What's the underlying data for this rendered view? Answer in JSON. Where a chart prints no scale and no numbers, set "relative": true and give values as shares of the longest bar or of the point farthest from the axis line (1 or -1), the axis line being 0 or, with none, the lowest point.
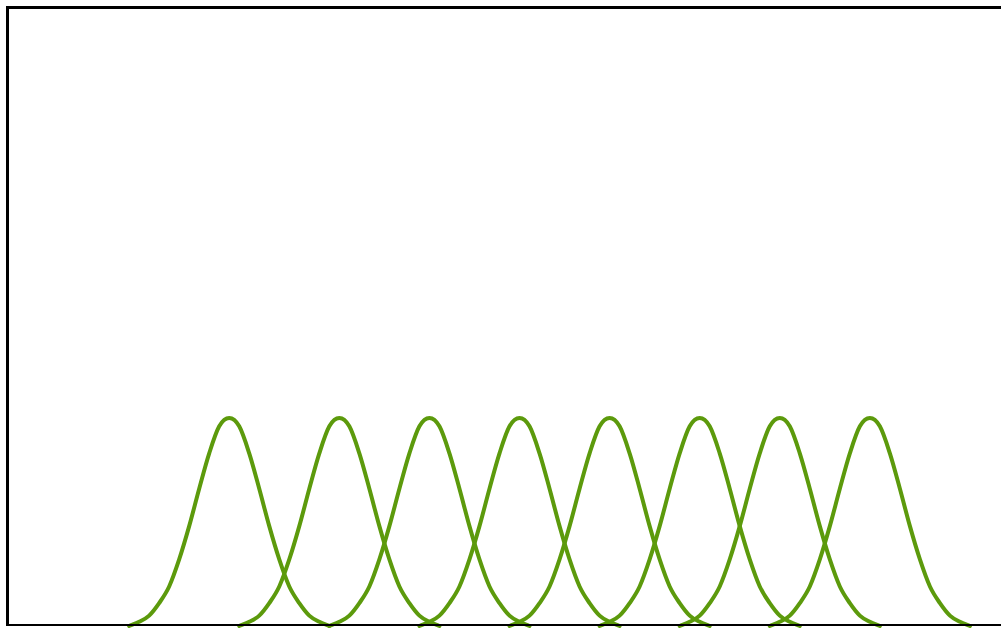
{
  "chart_data": {
    "type": "line",
    "relative": true,
    "marker": "none",
    "categories": [
      null,
      null,
      null,
      null,
      null,
      null,
      null,
      null,
      null,
      null,
      null,
      null,
      null,
      null,
      null,
      null,
      null,
      null,
      null,
      null,
      null,
      null,
      null,
      null,
      null,
      null,
      null,
      null,
      null,
      null,
      null,
      null,
      null,
      null,
      null,
      null,
      null,
      null,
      null,
      null,
      null,
      null,
      null,
      null,
      null,
      null,
      null,
      null,
      null,
      null,
      null,
      null,
      null,
      null,
      null,
      null,
      null,
      null,
      null,
      null,
      null,
      null,
      null,
      null,
      null,
      null,
      null,
      null,
      null,
      null,
      null,
      null,
      null,
      null,
      null,
      null,
      null,
      null,
      null,
      null,
      null,
      null,
      null,
      null,
      null,
      null,
      null,
      null,
      null,
      null,
      null,
      null,
      null,
      null,
      null,
      null,
      null,
      null,
      null,
      null
    ],
    "series": [
      {
        "color": "#5c9a0c",
        "values": [
          null,
          null,
          null,
          null,
          null,
          null,
          null,
          null,
          null,
          null,
          null,
          null,
          0,
          0.02,
          0.05,
          0.11,
          0.19,
          0.32,
          0.48,
          0.66,
          0.83,
          0.96,
          1,
          0.96,
          0.83,
          0.66,
          0.48,
          0.32,
          0.19,
          0.11,
          0.05,
          0.02,
          0,
          null,
          null,
          null,
          null,
          null,
          null,
          null,
          null,
          null,
          null,
          null,
          null,
          null,
          null,
          null,
          null,
          null,
          null,
          null,
          null,
          null,
          null,
          null,
          null,
          null,
          null,
          null,
          null,
          null,
          null,
          null,
          null,
          null,
          null,
          null,
          null,
          null,
          null,
          null,
          null,
          null,
          null,
          null,
          null,
          null,
          null,
          null,
          null,
          null,
          null,
          null,
          null,
          null,
          null,
          null,
          null,
          null,
          null,
          null,
          null,
          null,
          null,
          null,
          null,
          null,
          null,
          null
        ]
      },
      {
        "color": "#5c9a0c",
        "values": [
          null,
          null,
          null,
          null,
          null,
          null,
          null,
          null,
          null,
          null,
          null,
          null,
          null,
          null,
          null,
          null,
          null,
          null,
          null,
          null,
          null,
          null,
          null,
          0,
          0.02,
          0.05,
          0.11,
          0.19,
          0.32,
          0.48,
          0.66,
          0.83,
          0.96,
          1,
          0.96,
          0.83,
          0.66,
          0.48,
          0.32,
          0.19,
          0.11,
          0.05,
          0.02,
          0,
          null,
          null,
          null,
          null,
          null,
          null,
          null,
          null,
          null,
          null,
          null,
          null,
          null,
          null,
          null,
          null,
          null,
          null,
          null,
          null,
          null,
          null,
          null,
          null,
          null,
          null,
          null,
          null,
          null,
          null,
          null,
          null,
          null,
          null,
          null,
          null,
          null,
          null,
          null,
          null,
          null,
          null,
          null,
          null,
          null,
          null,
          null,
          null,
          null,
          null,
          null,
          null,
          null,
          null,
          null,
          null
        ]
      },
      {
        "color": "#5c9a0c",
        "values": [
          null,
          null,
          null,
          null,
          null,
          null,
          null,
          null,
          null,
          null,
          null,
          null,
          null,
          null,
          null,
          null,
          null,
          null,
          null,
          null,
          null,
          null,
          null,
          null,
          null,
          null,
          null,
          null,
          null,
          null,
          null,
          null,
          0,
          0.02,
          0.05,
          0.11,
          0.19,
          0.32,
          0.48,
          0.66,
          0.83,
          0.96,
          1,
          0.96,
          0.83,
          0.66,
          0.48,
          0.32,
          0.19,
          0.11,
          0.05,
          0.02,
          0,
          null,
          null,
          null,
          null,
          null,
          null,
          null,
          null,
          null,
          null,
          null,
          null,
          null,
          null,
          null,
          null,
          null,
          null,
          null,
          null,
          null,
          null,
          null,
          null,
          null,
          null,
          null,
          null,
          null,
          null,
          null,
          null,
          null,
          null,
          null,
          null,
          null,
          null,
          null,
          null,
          null,
          null,
          null,
          null,
          null,
          null,
          null
        ]
      },
      {
        "color": "#5c9a0c",
        "values": [
          null,
          null,
          null,
          null,
          null,
          null,
          null,
          null,
          null,
          null,
          null,
          null,
          null,
          null,
          null,
          null,
          null,
          null,
          null,
          null,
          null,
          null,
          null,
          null,
          null,
          null,
          null,
          null,
          null,
          null,
          null,
          null,
          null,
          null,
          null,
          null,
          null,
          null,
          null,
          null,
          null,
          0,
          0.02,
          0.05,
          0.11,
          0.19,
          0.32,
          0.48,
          0.66,
          0.83,
          0.96,
          1,
          0.96,
          0.83,
          0.66,
          0.48,
          0.32,
          0.19,
          0.11,
          0.05,
          0.02,
          0,
          null,
          null,
          null,
          null,
          null,
          null,
          null,
          null,
          null,
          null,
          null,
          null,
          null,
          null,
          null,
          null,
          null,
          null,
          null,
          null,
          null,
          null,
          null,
          null,
          null,
          null,
          null,
          null,
          null,
          null,
          null,
          null,
          null,
          null,
          null,
          null,
          null,
          null
        ]
      },
      {
        "color": "#5c9a0c",
        "values": [
          null,
          null,
          null,
          null,
          null,
          null,
          null,
          null,
          null,
          null,
          null,
          null,
          null,
          null,
          null,
          null,
          null,
          null,
          null,
          null,
          null,
          null,
          null,
          null,
          null,
          null,
          null,
          null,
          null,
          null,
          null,
          null,
          null,
          null,
          null,
          null,
          null,
          null,
          null,
          null,
          null,
          null,
          null,
          null,
          null,
          null,
          null,
          null,
          null,
          null,
          0,
          0.02,
          0.05,
          0.11,
          0.19,
          0.32,
          0.48,
          0.66,
          0.83,
          0.96,
          1,
          0.96,
          0.83,
          0.66,
          0.48,
          0.32,
          0.19,
          0.11,
          0.05,
          0.02,
          0,
          null,
          null,
          null,
          null,
          null,
          null,
          null,
          null,
          null,
          null,
          null,
          null,
          null,
          null,
          null,
          null,
          null,
          null,
          null,
          null,
          null,
          null,
          null,
          null,
          null,
          null,
          null,
          null,
          null
        ]
      },
      {
        "color": "#5c9a0c",
        "values": [
          null,
          null,
          null,
          null,
          null,
          null,
          null,
          null,
          null,
          null,
          null,
          null,
          null,
          null,
          null,
          null,
          null,
          null,
          null,
          null,
          null,
          null,
          null,
          null,
          null,
          null,
          null,
          null,
          null,
          null,
          null,
          null,
          null,
          null,
          null,
          null,
          null,
          null,
          null,
          null,
          null,
          null,
          null,
          null,
          null,
          null,
          null,
          null,
          null,
          null,
          null,
          null,
          null,
          null,
          null,
          null,
          null,
          null,
          null,
          0,
          0.02,
          0.05,
          0.11,
          0.19,
          0.32,
          0.48,
          0.66,
          0.83,
          0.96,
          1,
          0.96,
          0.83,
          0.66,
          0.48,
          0.32,
          0.19,
          0.11,
          0.05,
          0.02,
          0,
          null,
          null,
          null,
          null,
          null,
          null,
          null,
          null,
          null,
          null,
          null,
          null,
          null,
          null,
          null,
          null,
          null,
          null,
          null,
          null
        ]
      },
      {
        "color": "#5c9a0c",
        "values": [
          null,
          null,
          null,
          null,
          null,
          null,
          null,
          null,
          null,
          null,
          null,
          null,
          null,
          null,
          null,
          null,
          null,
          null,
          null,
          null,
          null,
          null,
          null,
          null,
          null,
          null,
          null,
          null,
          null,
          null,
          null,
          null,
          null,
          null,
          null,
          null,
          null,
          null,
          null,
          null,
          null,
          null,
          null,
          null,
          null,
          null,
          null,
          null,
          null,
          null,
          null,
          null,
          null,
          null,
          null,
          null,
          null,
          null,
          null,
          null,
          null,
          null,
          null,
          null,
          null,
          null,
          null,
          0,
          0.02,
          0.05,
          0.11,
          0.19,
          0.32,
          0.48,
          0.66,
          0.83,
          0.96,
          1,
          0.96,
          0.83,
          0.66,
          0.48,
          0.32,
          0.19,
          0.11,
          0.05,
          0.02,
          0,
          null,
          null,
          null,
          null,
          null,
          null,
          null,
          null,
          null,
          null,
          null,
          null
        ]
      },
      {
        "color": "#5c9a0c",
        "values": [
          null,
          null,
          null,
          null,
          null,
          null,
          null,
          null,
          null,
          null,
          null,
          null,
          null,
          null,
          null,
          null,
          null,
          null,
          null,
          null,
          null,
          null,
          null,
          null,
          null,
          null,
          null,
          null,
          null,
          null,
          null,
          null,
          null,
          null,
          null,
          null,
          null,
          null,
          null,
          null,
          null,
          null,
          null,
          null,
          null,
          null,
          null,
          null,
          null,
          null,
          null,
          null,
          null,
          null,
          null,
          null,
          null,
          null,
          null,
          null,
          null,
          null,
          null,
          null,
          null,
          null,
          null,
          null,
          null,
          null,
          null,
          null,
          null,
          null,
          null,
          null,
          0,
          0.02,
          0.05,
          0.11,
          0.19,
          0.32,
          0.48,
          0.66,
          0.83,
          0.96,
          1,
          0.96,
          0.83,
          0.66,
          0.48,
          0.32,
          0.19,
          0.11,
          0.05,
          0.02,
          0,
          null,
          null,
          null
        ]
      }
    ]
  }
}
